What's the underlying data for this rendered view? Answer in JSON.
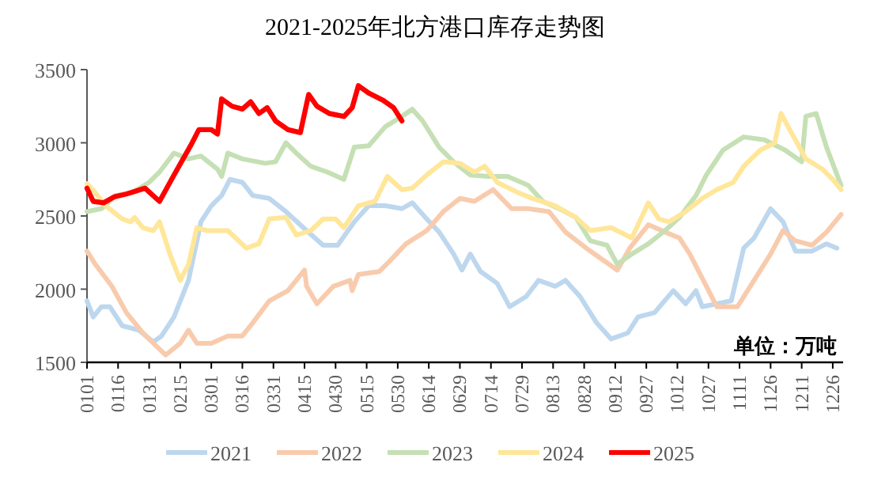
{
  "chart_data": {
    "type": "line",
    "title": "2021-2025年北方港口库存走势图",
    "annotations": [
      "单位：万吨"
    ],
    "xlim": [
      "--01-01",
      "--12-31"
    ],
    "ylim": [
      1500,
      3500
    ],
    "yticks": [
      1500,
      2000,
      2500,
      3000,
      3500
    ],
    "xticks": [
      {
        "value": "--01-01",
        "label": "0101"
      },
      {
        "value": "--01-16",
        "label": "0116"
      },
      {
        "value": "--01-31",
        "label": "0131"
      },
      {
        "value": "--02-15",
        "label": "0215"
      },
      {
        "value": "--03-01",
        "label": "0301"
      },
      {
        "value": "--03-16",
        "label": "0316"
      },
      {
        "value": "--03-31",
        "label": "0331"
      },
      {
        "value": "--04-15",
        "label": "0415"
      },
      {
        "value": "--04-30",
        "label": "0430"
      },
      {
        "value": "--05-15",
        "label": "0515"
      },
      {
        "value": "--05-30",
        "label": "0530"
      },
      {
        "value": "--06-14",
        "label": "0614"
      },
      {
        "value": "--06-29",
        "label": "0629"
      },
      {
        "value": "--07-14",
        "label": "0714"
      },
      {
        "value": "--07-29",
        "label": "0729"
      },
      {
        "value": "--08-13",
        "label": "0813"
      },
      {
        "value": "--08-28",
        "label": "0828"
      },
      {
        "value": "--09-12",
        "label": "0912"
      },
      {
        "value": "--09-27",
        "label": "0927"
      },
      {
        "value": "--10-12",
        "label": "1012"
      },
      {
        "value": "--10-27",
        "label": "1027"
      },
      {
        "value": "--11-11",
        "label": "1111"
      },
      {
        "value": "--11-26",
        "label": "1126"
      },
      {
        "value": "--12-11",
        "label": "1211"
      },
      {
        "value": "--12-26",
        "label": "1226"
      }
    ],
    "grid": false,
    "legend": "bottom",
    "line_style": "solid",
    "series": [
      {
        "name": "2021",
        "color": "#bdd7ee",
        "x": [
          "--01-01",
          "--01-04",
          "--01-08",
          "--01-12",
          "--01-18",
          "--01-26",
          "--02-02",
          "--02-06",
          "--02-12",
          "--02-19",
          "--02-25",
          "--03-01",
          "--03-06",
          "--03-10",
          "--03-16",
          "--03-21",
          "--03-29",
          "--04-06",
          "--04-16",
          "--04-24",
          "--05-01",
          "--05-09",
          "--05-16",
          "--05-24",
          "--06-01",
          "--06-06",
          "--06-13",
          "--06-19",
          "--06-26",
          "--06-30",
          "--07-04",
          "--07-09",
          "--07-17",
          "--07-23",
          "--07-31",
          "--08-06",
          "--08-14",
          "--08-19",
          "--08-26",
          "--09-03",
          "--09-10",
          "--09-18",
          "--09-23",
          "--10-01",
          "--10-10",
          "--10-16",
          "--10-21",
          "--10-24",
          "--10-31",
          "--11-07",
          "--11-13",
          "--11-18",
          "--11-26",
          "--12-02",
          "--12-08",
          "--12-16",
          "--12-23",
          "--12-28"
        ],
        "values": [
          1920,
          1810,
          1880,
          1880,
          1750,
          1720,
          1640,
          1680,
          1810,
          2060,
          2460,
          2570,
          2640,
          2750,
          2730,
          2640,
          2620,
          2530,
          2400,
          2300,
          2300,
          2460,
          2570,
          2570,
          2550,
          2590,
          2480,
          2390,
          2240,
          2130,
          2240,
          2120,
          2040,
          1880,
          1950,
          2060,
          2020,
          2060,
          1950,
          1770,
          1660,
          1700,
          1810,
          1840,
          1990,
          1900,
          1990,
          1880,
          1900,
          1920,
          2280,
          2350,
          2550,
          2460,
          2260,
          2260,
          2310,
          2280
        ]
      },
      {
        "name": "2022",
        "color": "#f8cbad",
        "x": [
          "--01-01",
          "--01-05",
          "--01-13",
          "--01-20",
          "--01-28",
          "--02-05",
          "--02-08",
          "--02-15",
          "--02-19",
          "--02-23",
          "--03-01",
          "--03-09",
          "--03-16",
          "--03-21",
          "--03-29",
          "--04-07",
          "--04-15",
          "--04-16",
          "--04-21",
          "--04-29",
          "--05-07",
          "--05-08",
          "--05-11",
          "--05-21",
          "--05-26",
          "--06-03",
          "--06-13",
          "--06-21",
          "--06-29",
          "--07-06",
          "--07-15",
          "--07-24",
          "--08-01",
          "--08-11",
          "--08-19",
          "--08-29",
          "--09-06",
          "--09-13",
          "--09-19",
          "--09-28",
          "--10-06",
          "--10-13",
          "--10-18",
          "--10-26",
          "--10-31",
          "--11-10",
          "--11-18",
          "--11-26",
          "--12-02",
          "--12-08",
          "--12-16",
          "--12-23",
          "--12-30"
        ],
        "values": [
          2260,
          2170,
          2020,
          1840,
          1700,
          1590,
          1550,
          1630,
          1720,
          1630,
          1630,
          1680,
          1680,
          1770,
          1920,
          1990,
          2130,
          2020,
          1900,
          2020,
          2060,
          1990,
          2100,
          2120,
          2190,
          2310,
          2400,
          2530,
          2620,
          2600,
          2680,
          2550,
          2550,
          2530,
          2390,
          2280,
          2200,
          2130,
          2280,
          2440,
          2390,
          2350,
          2240,
          2020,
          1880,
          1880,
          2060,
          2240,
          2400,
          2330,
          2300,
          2390,
          2510
        ]
      },
      {
        "name": "2023",
        "color": "#c5e0b4",
        "x": [
          "--01-01",
          "--01-08",
          "--01-15",
          "--01-23",
          "--01-31",
          "--02-05",
          "--02-12",
          "--02-19",
          "--02-25",
          "--03-04",
          "--03-06",
          "--03-09",
          "--03-16",
          "--03-27",
          "--04-01",
          "--04-06",
          "--04-11",
          "--04-18",
          "--04-26",
          "--05-04",
          "--05-09",
          "--05-16",
          "--05-24",
          "--06-01",
          "--06-06",
          "--06-11",
          "--06-19",
          "--06-26",
          "--07-04",
          "--07-13",
          "--07-22",
          "--08-01",
          "--08-08",
          "--08-16",
          "--08-24",
          "--08-31",
          "--09-08",
          "--09-13",
          "--09-20",
          "--09-28",
          "--10-06",
          "--10-13",
          "--10-21",
          "--10-26",
          "--11-03",
          "--11-13",
          "--11-23",
          "--12-03",
          "--12-11",
          "--12-13",
          "--12-18",
          "--12-23",
          "--12-30"
        ],
        "values": [
          2530,
          2550,
          2640,
          2660,
          2730,
          2800,
          2930,
          2890,
          2910,
          2820,
          2770,
          2930,
          2890,
          2860,
          2870,
          3000,
          2930,
          2840,
          2800,
          2750,
          2970,
          2980,
          3110,
          3180,
          3230,
          3150,
          2970,
          2870,
          2780,
          2770,
          2770,
          2710,
          2600,
          2550,
          2490,
          2330,
          2300,
          2170,
          2240,
          2310,
          2400,
          2490,
          2640,
          2780,
          2950,
          3040,
          3020,
          2950,
          2870,
          3180,
          3200,
          2970,
          2710
        ]
      },
      {
        "name": "2024",
        "color": "#ffe699",
        "x": [
          "--01-01",
          "--01-05",
          "--01-10",
          "--01-18",
          "--01-22",
          "--01-24",
          "--01-28",
          "--02-02",
          "--02-05",
          "--02-10",
          "--02-15",
          "--02-19",
          "--02-23",
          "--02-28",
          "--03-09",
          "--03-18",
          "--03-24",
          "--03-29",
          "--04-06",
          "--04-11",
          "--04-18",
          "--04-24",
          "--04-30",
          "--05-04",
          "--05-11",
          "--05-19",
          "--05-25",
          "--06-01",
          "--06-06",
          "--06-13",
          "--06-21",
          "--06-29",
          "--07-06",
          "--07-11",
          "--07-17",
          "--07-27",
          "--08-03",
          "--08-14",
          "--08-24",
          "--08-31",
          "--09-10",
          "--09-20",
          "--09-28",
          "--10-03",
          "--10-08",
          "--10-16",
          "--10-24",
          "--10-31",
          "--11-08",
          "--11-13",
          "--11-21",
          "--11-28",
          "--12-01",
          "--12-06",
          "--12-13",
          "--12-21",
          "--12-26",
          "--12-30"
        ],
        "values": [
          2720,
          2660,
          2570,
          2480,
          2460,
          2490,
          2420,
          2400,
          2460,
          2240,
          2060,
          2170,
          2420,
          2400,
          2400,
          2280,
          2310,
          2480,
          2490,
          2370,
          2400,
          2480,
          2480,
          2420,
          2570,
          2600,
          2770,
          2680,
          2690,
          2780,
          2870,
          2860,
          2800,
          2840,
          2730,
          2660,
          2620,
          2570,
          2490,
          2400,
          2420,
          2350,
          2590,
          2480,
          2460,
          2530,
          2620,
          2680,
          2730,
          2840,
          2950,
          3000,
          3200,
          3070,
          2890,
          2820,
          2750,
          2680
        ]
      },
      {
        "name": "2025",
        "color": "#ff0000",
        "x": [
          "--01-01",
          "--01-04",
          "--01-09",
          "--01-14",
          "--01-20",
          "--01-29",
          "--02-05",
          "--02-12",
          "--02-20",
          "--02-24",
          "--03-01",
          "--03-04",
          "--03-06",
          "--03-11",
          "--03-16",
          "--03-20",
          "--03-24",
          "--03-28",
          "--04-01",
          "--04-07",
          "--04-13",
          "--04-17",
          "--04-21",
          "--04-27",
          "--05-04",
          "--05-08",
          "--05-11",
          "--05-16",
          "--05-23",
          "--05-28",
          "--06-01"
        ],
        "values": [
          2690,
          2600,
          2590,
          2630,
          2650,
          2690,
          2600,
          2780,
          2980,
          3090,
          3090,
          3060,
          3300,
          3250,
          3230,
          3280,
          3200,
          3240,
          3150,
          3090,
          3070,
          3330,
          3250,
          3200,
          3180,
          3240,
          3390,
          3340,
          3290,
          3240,
          3150
        ]
      }
    ]
  }
}
